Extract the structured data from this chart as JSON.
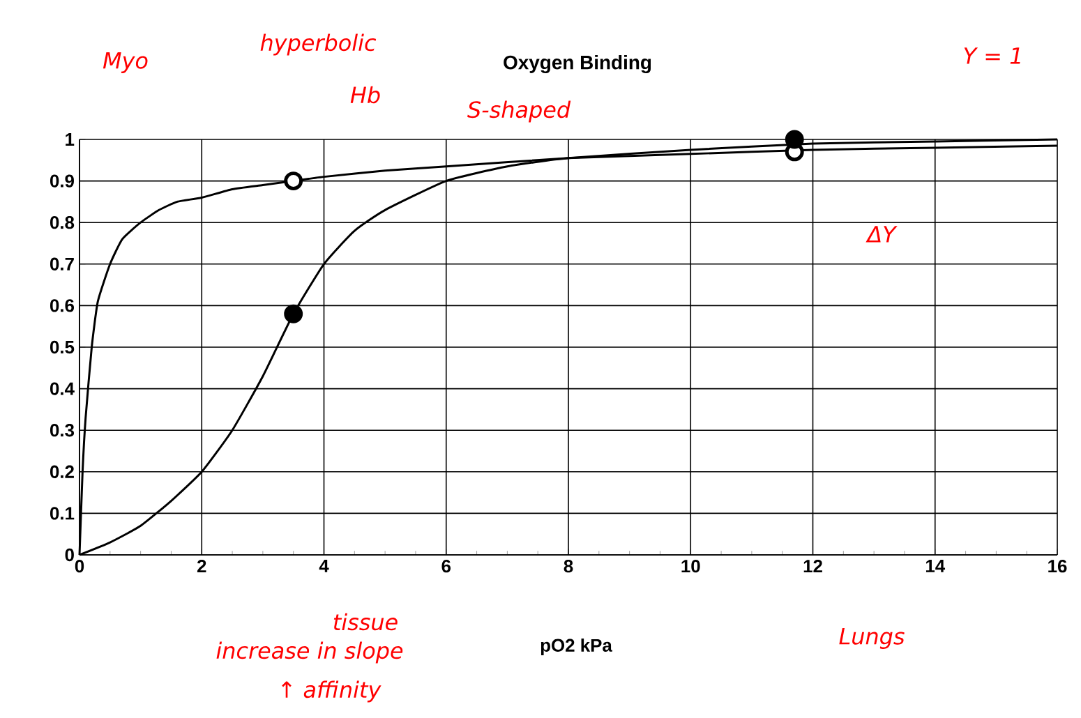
{
  "chart_data": {
    "type": "line",
    "title": "Oxygen Binding",
    "xlabel": "pO2 kPa",
    "xlim": [
      0,
      16
    ],
    "ylim": [
      0,
      1
    ],
    "xticks": [
      0,
      2,
      4,
      6,
      8,
      10,
      12,
      14,
      16
    ],
    "yticks": [
      0,
      0.1,
      0.2,
      0.3,
      0.4,
      0.5,
      0.6,
      0.7,
      0.8,
      0.9,
      1
    ],
    "grid": true,
    "series": [
      {
        "color": "#000000",
        "x": [
          0,
          0.05,
          0.1,
          0.2,
          0.3,
          0.5,
          0.7,
          1,
          1.3,
          1.6,
          2,
          2.5,
          3,
          3.5,
          4,
          5,
          6,
          8,
          10,
          12,
          14,
          16
        ],
        "values": [
          0,
          0.2,
          0.33,
          0.5,
          0.61,
          0.7,
          0.76,
          0.8,
          0.83,
          0.85,
          0.86,
          0.88,
          0.89,
          0.9,
          0.91,
          0.925,
          0.935,
          0.955,
          0.965,
          0.975,
          0.98,
          0.985
        ]
      },
      {
        "color": "#000000",
        "x": [
          0,
          0.5,
          1,
          1.5,
          2,
          2.5,
          3,
          3.5,
          4,
          4.5,
          5,
          6,
          7,
          8,
          10,
          12,
          14,
          16
        ],
        "values": [
          0,
          0.03,
          0.07,
          0.13,
          0.2,
          0.3,
          0.43,
          0.58,
          0.7,
          0.78,
          0.83,
          0.9,
          0.935,
          0.955,
          0.975,
          0.99,
          0.995,
          1.0
        ]
      },
      {
        "type": "scatter",
        "color": "#ffffff",
        "x": [
          3.5,
          11.7
        ],
        "values": [
          0.9,
          0.97
        ]
      },
      {
        "type": "scatter",
        "color": "#000000",
        "x": [
          3.5,
          11.7
        ],
        "values": [
          0.58,
          1.0
        ]
      }
    ],
    "annotations": [
      "Myo",
      "hyperbolic",
      "Hb",
      "S-shaped",
      "Y = 1",
      "ΔY",
      "tissue",
      "increase in slope",
      "↑ affinity",
      "Lungs"
    ]
  }
}
